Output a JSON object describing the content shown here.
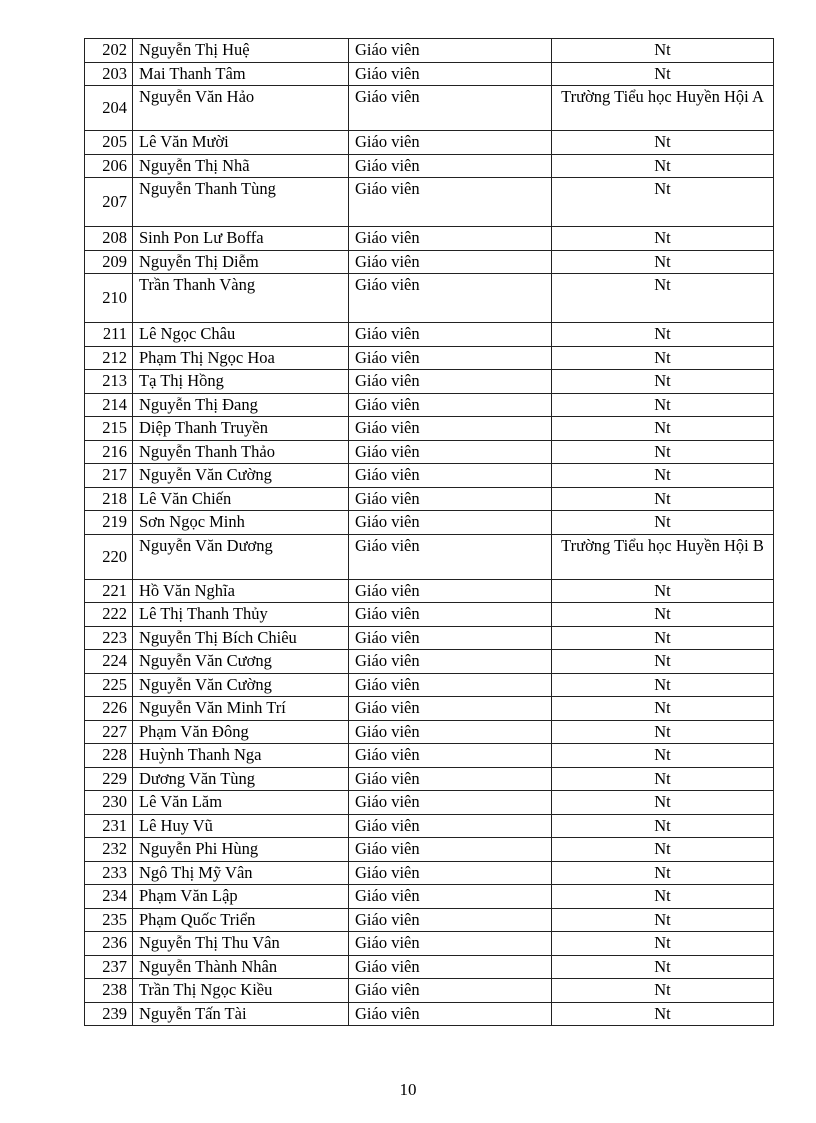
{
  "rows": [
    {
      "no": "202",
      "name": "Nguyễn  Thị Huệ",
      "role": "Giáo viên",
      "school": "Nt"
    },
    {
      "no": "203",
      "name": "Mai Thanh Tâm",
      "role": "Giáo viên",
      "school": "Nt"
    },
    {
      "no": "204",
      "name": "Nguyễn  Văn Hảo",
      "role": "Giáo viên",
      "school": "Trường Tiểu học Huyền Hội A"
    },
    {
      "no": "205",
      "name": "Lê Văn Mười",
      "role": "Giáo viên",
      "school": "Nt"
    },
    {
      "no": "206",
      "name": "Nguyễn  Thị Nhã",
      "role": "Giáo viên",
      "school": "Nt"
    },
    {
      "no": "207",
      "name": "Nguyễn  Thanh Tùng",
      "role": "Giáo viên",
      "school": "Nt"
    },
    {
      "no": "208",
      "name": "Sinh Pon Lư Boffa",
      "role": "Giáo viên",
      "school": "Nt"
    },
    {
      "no": "209",
      "name": "Nguyễn  Thị Diễm",
      "role": "Giáo viên",
      "school": "Nt"
    },
    {
      "no": "210",
      "name": "Trần Thanh Vàng",
      "role": "Giáo viên",
      "school": "Nt"
    },
    {
      "no": "211",
      "name": "Lê Ngọc Châu",
      "role": "Giáo viên",
      "school": "Nt"
    },
    {
      "no": "212",
      "name": "Phạm Thị Ngọc Hoa",
      "role": "Giáo viên",
      "school": "Nt"
    },
    {
      "no": "213",
      "name": "Tạ Thị Hồng",
      "role": "Giáo viên",
      "school": "Nt"
    },
    {
      "no": "214",
      "name": "Nguyễn  Thị Đang",
      "role": "Giáo viên",
      "school": "Nt"
    },
    {
      "no": "215",
      "name": "Diệp  Thanh Truyền",
      "role": "Giáo viên",
      "school": "Nt"
    },
    {
      "no": "216",
      "name": "Nguyễn  Thanh Thảo",
      "role": "Giáo viên",
      "school": "Nt"
    },
    {
      "no": "217",
      "name": "Nguyễn  Văn Cường",
      "role": "Giáo viên",
      "school": "Nt"
    },
    {
      "no": "218",
      "name": "Lê Văn Chiến",
      "role": "Giáo viên",
      "school": "Nt"
    },
    {
      "no": "219",
      "name": "Sơn Ngọc  Minh",
      "role": "Giáo viên",
      "school": "Nt"
    },
    {
      "no": "220",
      "name": "Nguyễn  Văn Dương",
      "role": "Giáo viên",
      "school": "Trường Tiểu học Huyền Hội B"
    },
    {
      "no": "221",
      "name": "Hồ Văn Nghĩa",
      "role": "Giáo viên",
      "school": "Nt"
    },
    {
      "no": "222",
      "name": "Lê Thị Thanh Thủy",
      "role": "Giáo viên",
      "school": "Nt"
    },
    {
      "no": "223",
      "name": "Nguyễn  Thị Bích Chiêu",
      "role": "Giáo viên",
      "school": "Nt"
    },
    {
      "no": "224",
      "name": "Nguyễn  Văn Cương",
      "role": "Giáo viên",
      "school": "Nt"
    },
    {
      "no": "225",
      "name": "Nguyễn  Văn Cường",
      "role": "Giáo viên",
      "school": "Nt"
    },
    {
      "no": "226",
      "name": "Nguyễn  Văn Minh Trí",
      "role": "Giáo viên",
      "school": "Nt"
    },
    {
      "no": "227",
      "name": "Phạm Văn Đông",
      "role": "Giáo viên",
      "school": "Nt"
    },
    {
      "no": "228",
      "name": "Huỳnh Thanh Nga",
      "role": "Giáo viên",
      "school": "Nt"
    },
    {
      "no": "229",
      "name": "Dương Văn Tùng",
      "role": "Giáo viên",
      "school": "Nt"
    },
    {
      "no": "230",
      "name": "Lê Văn Lăm",
      "role": "Giáo viên",
      "school": "Nt"
    },
    {
      "no": "231",
      "name": "Lê Huy Vũ",
      "role": "Giáo viên",
      "school": "Nt"
    },
    {
      "no": "232",
      "name": "Nguyễn  Phi Hùng",
      "role": "Giáo viên",
      "school": "Nt"
    },
    {
      "no": "233",
      "name": "Ngô  Thị Mỹ Vân",
      "role": "Giáo viên",
      "school": "Nt"
    },
    {
      "no": "234",
      "name": "Phạm Văn Lập",
      "role": "Giáo viên",
      "school": "Nt"
    },
    {
      "no": "235",
      "name": "Phạm Quốc Triển",
      "role": "Giáo viên",
      "school": "Nt"
    },
    {
      "no": "236",
      "name": "Nguyễn  Thị Thu Vân",
      "role": "Giáo viên",
      "school": "Nt"
    },
    {
      "no": "237",
      "name": "Nguyễn  Thành Nhân",
      "role": "Giáo viên",
      "school": "Nt"
    },
    {
      "no": "238",
      "name": "Trần Thị Ngọc Kiều",
      "role": "Giáo viên",
      "school": "Nt"
    },
    {
      "no": "239",
      "name": "Nguyễn  Tấn Tài",
      "role": "Giáo viên",
      "school": "Nt"
    }
  ],
  "page_number": "10"
}
